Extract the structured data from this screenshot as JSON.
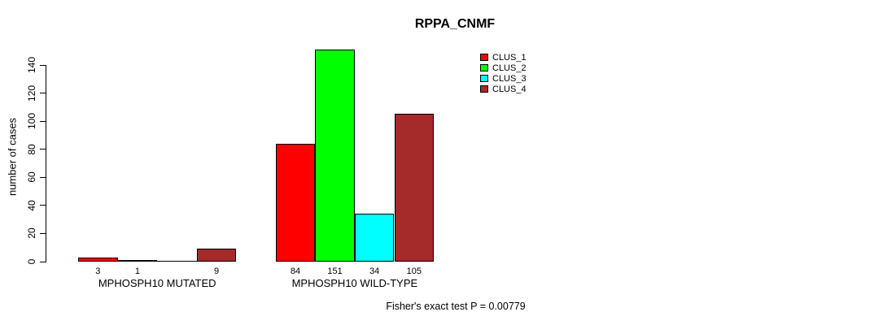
{
  "page": {
    "background_color": "#ffffff",
    "text_color": "#000000"
  },
  "chart_data": {
    "type": "bar",
    "title": "RPPA_CNMF",
    "ylabel": "number of cases",
    "xlabel": "",
    "ylim": [
      0,
      140
    ],
    "yticks": [
      0,
      20,
      40,
      60,
      80,
      100,
      120,
      140
    ],
    "grid": false,
    "legend_position": "top-right",
    "categories": [
      "MPHOSPH10 MUTATED",
      "MPHOSPH10 WILD-TYPE"
    ],
    "series": [
      {
        "name": "CLUS_1",
        "color": "#FF0000",
        "values": [
          3,
          84
        ]
      },
      {
        "name": "CLUS_2",
        "color": "#00FF00",
        "values": [
          1,
          151
        ]
      },
      {
        "name": "CLUS_3",
        "color": "#00FFFF",
        "values": [
          0,
          34
        ]
      },
      {
        "name": "CLUS_4",
        "color": "#A52A2A",
        "values": [
          9,
          105
        ]
      }
    ],
    "bar_value_labels": [
      [
        "3",
        "1",
        "",
        "9"
      ],
      [
        "84",
        "151",
        "34",
        "105"
      ]
    ],
    "annotation": "Fisher's exact test P = 0.00779"
  }
}
